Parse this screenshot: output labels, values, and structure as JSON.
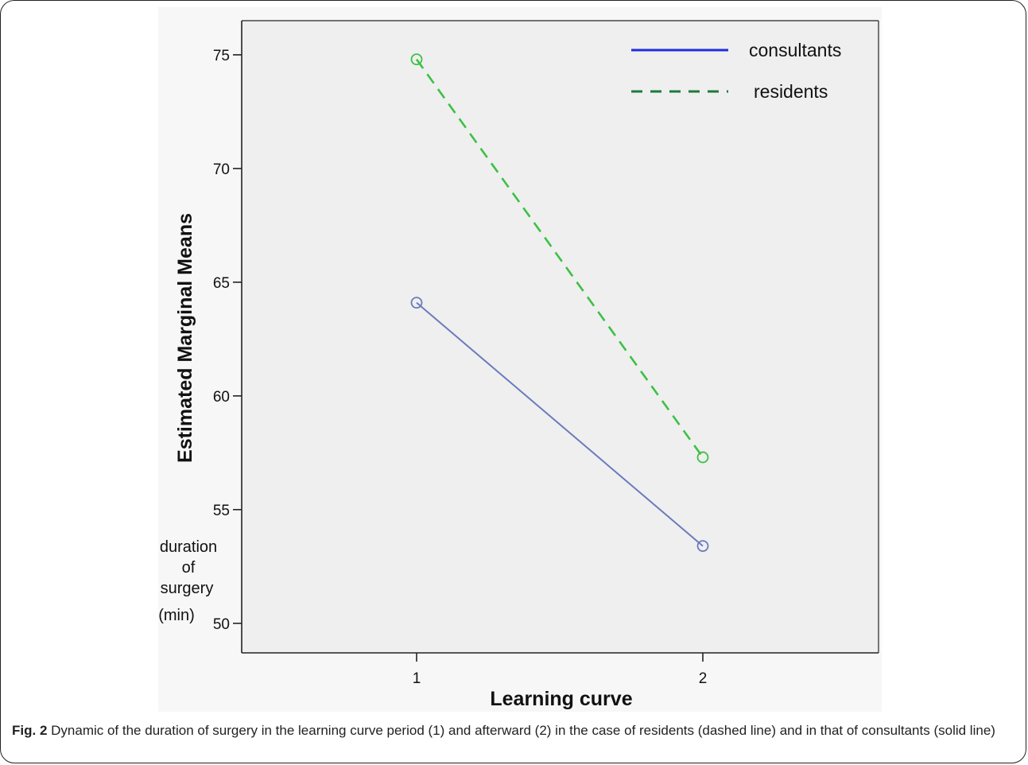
{
  "chart_data": {
    "type": "line",
    "xlabel": "Learning curve",
    "ylabel": "Estimated Marginal Means",
    "y_note": [
      "duration",
      "of",
      "surgery",
      "(min)"
    ],
    "categories": [
      "1",
      "2"
    ],
    "ylim": [
      48.7,
      76.5
    ],
    "yticks": [
      50,
      55,
      60,
      65,
      70,
      75
    ],
    "grid": false,
    "legend_position": "top-right",
    "series": [
      {
        "name": "consultants",
        "values": [
          64.1,
          53.4
        ],
        "style": "solid",
        "color": "#6b7bbd",
        "legend_color": "#1f2de0"
      },
      {
        "name": "residents",
        "values": [
          74.8,
          57.3
        ],
        "style": "dashed",
        "color": "#3cc045",
        "legend_color": "#1e7a3c"
      }
    ]
  },
  "caption": {
    "label": "Fig. 2",
    "text": " Dynamic of the duration of surgery in the learning curve period (1) and afterward (2) in the case of residents (dashed line) and in that of consultants (solid line)"
  },
  "colors": {
    "plot_background": "#efefef",
    "outer_background": "#f7f7f7"
  }
}
